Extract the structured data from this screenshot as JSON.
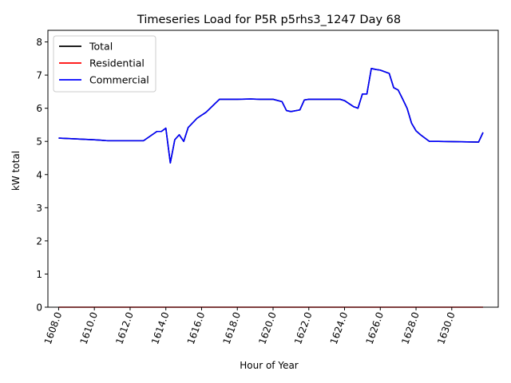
{
  "chart_data": {
    "type": "line",
    "title": "Timeseries Load for P5R p5rhs3_1247  Day 68",
    "xlabel": "Hour of Year",
    "ylabel": "kW total",
    "xlim": [
      1607.4,
      1632.6
    ],
    "ylim": [
      0,
      8.35
    ],
    "xticks": [
      1608,
      1610,
      1612,
      1614,
      1616,
      1618,
      1620,
      1622,
      1624,
      1626,
      1628,
      1630
    ],
    "xtick_labels": [
      "1608.0",
      "1610.0",
      "1612.0",
      "1614.0",
      "1616.0",
      "1618.0",
      "1620.0",
      "1622.0",
      "1624.0",
      "1626.0",
      "1628.0",
      "1630.0"
    ],
    "yticks": [
      0,
      1,
      2,
      3,
      4,
      5,
      6,
      7,
      8
    ],
    "ytick_labels": [
      "0",
      "1",
      "2",
      "3",
      "4",
      "5",
      "6",
      "7",
      "8"
    ],
    "legend_position": "upper-left",
    "series": [
      {
        "name": "Total",
        "color": "#000000",
        "x": [
          1608.0,
          1610.0,
          1610.75,
          1612.75,
          1613.5,
          1613.75,
          1614.0,
          1614.25,
          1614.5,
          1614.75,
          1615.0,
          1615.25,
          1615.75,
          1616.25,
          1617.0,
          1618.0,
          1618.75,
          1619.25,
          1620.0,
          1620.5,
          1620.75,
          1621.0,
          1621.5,
          1621.75,
          1622.0,
          1623.0,
          1623.75,
          1624.0,
          1624.5,
          1624.75,
          1625.0,
          1625.25,
          1625.5,
          1625.75,
          1626.0,
          1626.5,
          1626.75,
          1627.0,
          1627.25,
          1627.5,
          1627.75,
          1628.0,
          1628.25,
          1628.75,
          1629.25,
          1631.5,
          1631.75
        ],
        "values": [
          5.1,
          5.05,
          5.02,
          5.02,
          5.3,
          5.3,
          5.4,
          4.35,
          5.05,
          5.2,
          5.0,
          5.42,
          5.7,
          5.88,
          6.27,
          6.27,
          6.28,
          6.27,
          6.27,
          6.2,
          5.93,
          5.9,
          5.95,
          6.25,
          6.27,
          6.27,
          6.27,
          6.23,
          6.05,
          6.0,
          6.43,
          6.43,
          7.2,
          7.17,
          7.15,
          7.05,
          6.62,
          6.55,
          6.28,
          6.0,
          5.55,
          5.32,
          5.2,
          5.0,
          5.0,
          4.98,
          5.27
        ]
      },
      {
        "name": "Residential",
        "color": "#ff0000",
        "x": [
          1608.0,
          1631.75
        ],
        "values": [
          0.0,
          0.0
        ]
      },
      {
        "name": "Commercial",
        "color": "#0000ff",
        "x": [
          1608.0,
          1610.0,
          1610.75,
          1612.75,
          1613.5,
          1613.75,
          1614.0,
          1614.25,
          1614.5,
          1614.75,
          1615.0,
          1615.25,
          1615.75,
          1616.25,
          1617.0,
          1618.0,
          1618.75,
          1619.25,
          1620.0,
          1620.5,
          1620.75,
          1621.0,
          1621.5,
          1621.75,
          1622.0,
          1623.0,
          1623.75,
          1624.0,
          1624.5,
          1624.75,
          1625.0,
          1625.25,
          1625.5,
          1625.75,
          1626.0,
          1626.5,
          1626.75,
          1627.0,
          1627.25,
          1627.5,
          1627.75,
          1628.0,
          1628.25,
          1628.75,
          1629.25,
          1631.5,
          1631.75
        ],
        "values": [
          5.1,
          5.05,
          5.02,
          5.02,
          5.3,
          5.3,
          5.4,
          4.35,
          5.05,
          5.2,
          5.0,
          5.42,
          5.7,
          5.88,
          6.27,
          6.27,
          6.28,
          6.27,
          6.27,
          6.2,
          5.93,
          5.9,
          5.95,
          6.25,
          6.27,
          6.27,
          6.27,
          6.23,
          6.05,
          6.0,
          6.43,
          6.43,
          7.2,
          7.17,
          7.15,
          7.05,
          6.62,
          6.55,
          6.28,
          6.0,
          5.55,
          5.32,
          5.2,
          5.0,
          5.0,
          4.98,
          5.27
        ]
      }
    ]
  }
}
